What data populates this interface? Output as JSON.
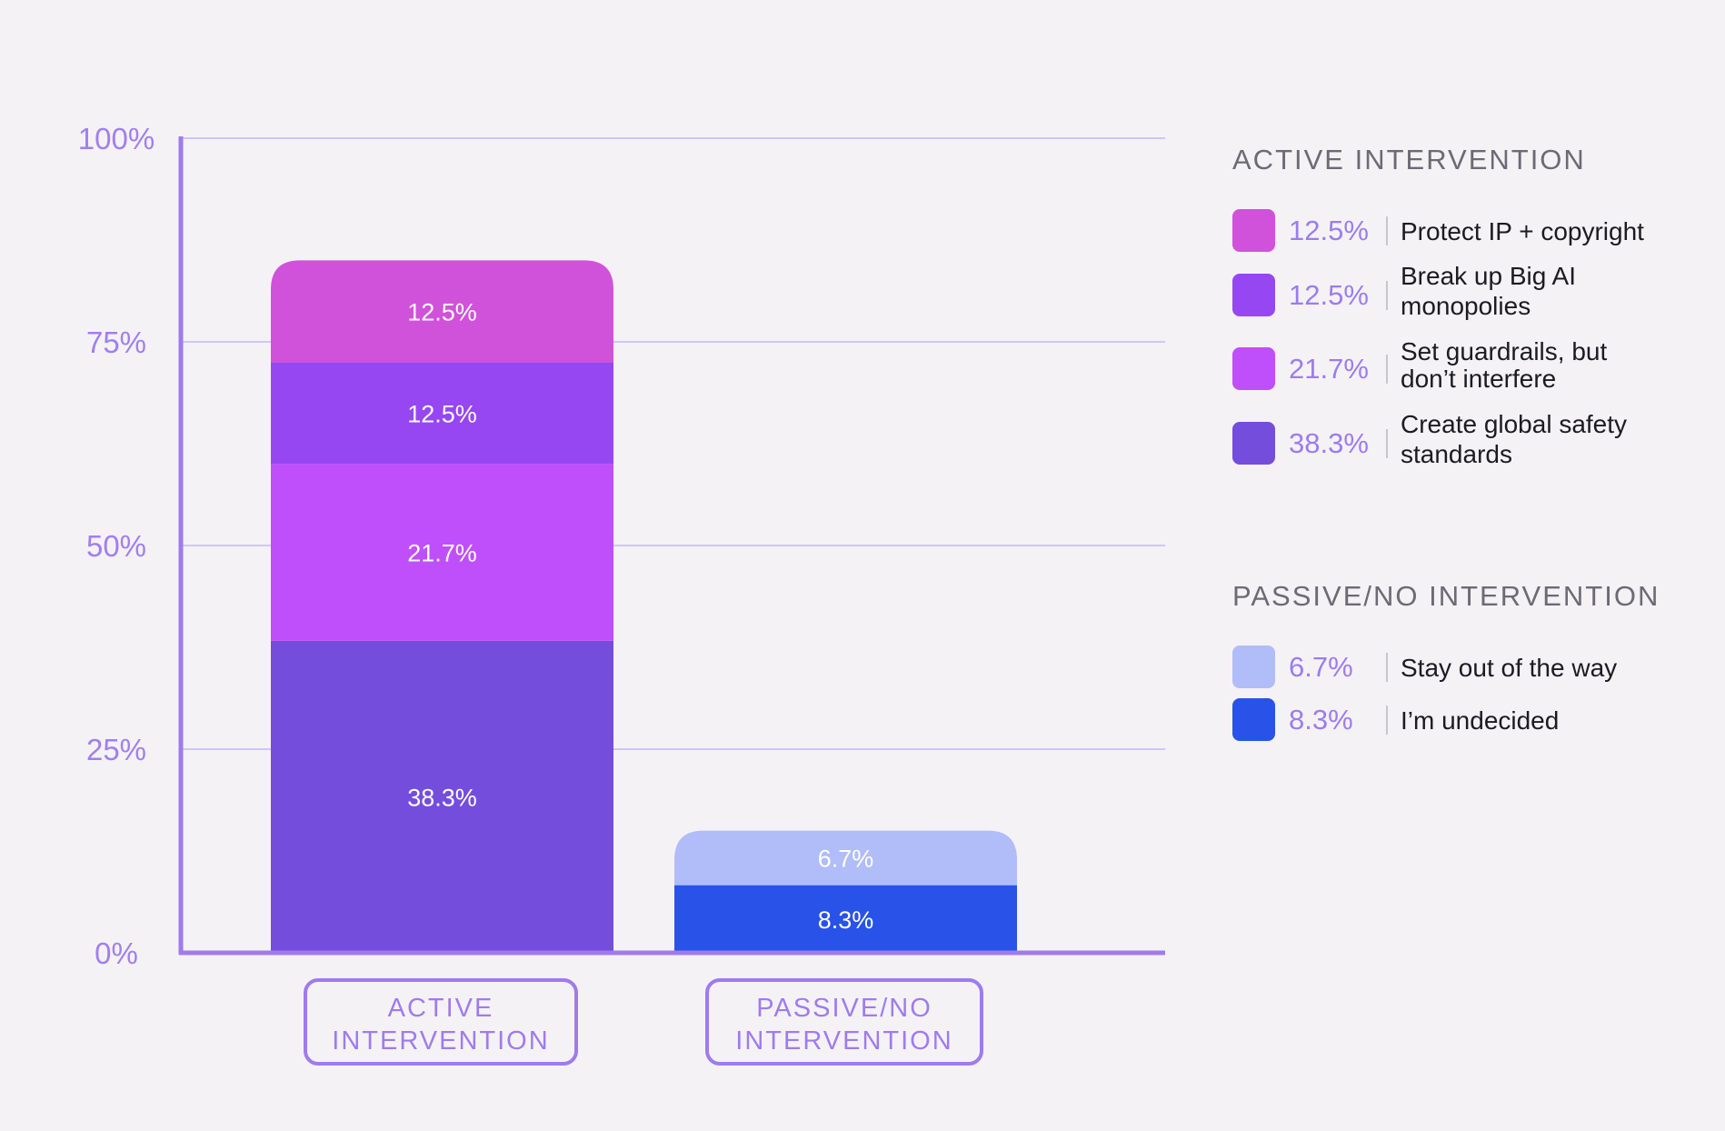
{
  "chart_data": {
    "type": "bar",
    "stacked": true,
    "categories": [
      "ACTIVE INTERVENTION",
      "PASSIVE/NO INTERVENTION"
    ],
    "category_lines": [
      [
        "ACTIVE",
        "INTERVENTION"
      ],
      [
        "PASSIVE/NO",
        "INTERVENTION"
      ]
    ],
    "ylim": [
      0,
      100
    ],
    "yticks": [
      {
        "value": 0,
        "label": "0%"
      },
      {
        "value": 25,
        "label": "25%"
      },
      {
        "value": 50,
        "label": "50%"
      },
      {
        "value": 75,
        "label": "75%"
      },
      {
        "value": 100,
        "label": "100%"
      }
    ],
    "grid": true,
    "series": [
      {
        "name": "Create global safety standards",
        "group": "ACTIVE INTERVENTION",
        "category": 0,
        "value": 38.3,
        "label": "38.3%",
        "color": "#744ddd"
      },
      {
        "name": "Set guardrails, but don’t interfere",
        "group": "ACTIVE INTERVENTION",
        "category": 0,
        "value": 21.7,
        "label": "21.7%",
        "color": "#bf4ffb"
      },
      {
        "name": "Break up Big AI monopolies",
        "group": "ACTIVE INTERVENTION",
        "category": 0,
        "value": 12.5,
        "label": "12.5%",
        "color": "#9747f2"
      },
      {
        "name": "Protect IP + copyright",
        "group": "ACTIVE INTERVENTION",
        "category": 0,
        "value": 12.5,
        "label": "12.5%",
        "color": "#d152da"
      },
      {
        "name": "I’m undecided",
        "group": "PASSIVE/NO INTERVENTION",
        "category": 1,
        "value": 8.3,
        "label": "8.3%",
        "color": "#2952e9"
      },
      {
        "name": "Stay out of the way",
        "group": "PASSIVE/NO INTERVENTION",
        "category": 1,
        "value": 6.7,
        "label": "6.7%",
        "color": "#b0bdf8"
      }
    ],
    "legend_position": "right"
  },
  "legend": {
    "groups": [
      {
        "title": "ACTIVE INTERVENTION",
        "items": [
          {
            "value": "12.5%",
            "label": "Protect IP + copyright",
            "color": "#d152da"
          },
          {
            "value": "12.5%",
            "label": "Break up Big AI monopolies",
            "color": "#9747f2"
          },
          {
            "value": "21.7%",
            "label": "Set guardrails, but don’t interfere",
            "color": "#bf4ffb"
          },
          {
            "value": "38.3%",
            "label": "Create global safety standards",
            "color": "#744ddd"
          }
        ]
      },
      {
        "title": "PASSIVE/NO INTERVENTION",
        "items": [
          {
            "value": "6.7%",
            "label": "Stay out of the way",
            "color": "#b0bdf8"
          },
          {
            "value": "8.3%",
            "label": "I’m undecided",
            "color": "#2952e9"
          }
        ]
      }
    ]
  },
  "colors": {
    "axis": "#9f7bee",
    "grid": "#cfc6f5",
    "tick_label": "#a07ff0",
    "category_label": "#9f7bee",
    "segment_label": "#ffffff"
  }
}
